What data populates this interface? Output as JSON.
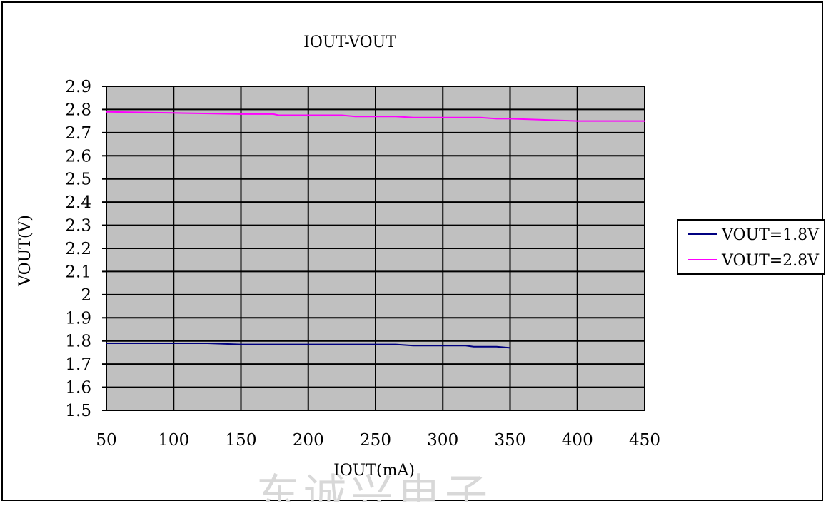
{
  "chart_data": {
    "type": "line",
    "title": "IOUT-VOUT",
    "xlabel": "IOUT(mA)",
    "ylabel": "VOUT(V)",
    "xlim": [
      50,
      450
    ],
    "ylim": [
      1.5,
      2.9
    ],
    "x_ticks": [
      "50",
      "100",
      "150",
      "200",
      "250",
      "300",
      "350",
      "400",
      "450"
    ],
    "y_ticks": [
      "2.9",
      "2.8",
      "2.7",
      "2.6",
      "2.5",
      "2.4",
      "2.3",
      "2.2",
      "2.1",
      "2",
      "1.9",
      "1.8",
      "1.7",
      "1.6",
      "1.5"
    ],
    "grid": true,
    "plot_background": "#c0c0c0",
    "legend_position": "right",
    "series": [
      {
        "name": "VOUT=1.8V",
        "color": "#000080",
        "points": [
          [
            50,
            1.79
          ],
          [
            125,
            1.79
          ],
          [
            150,
            1.785
          ],
          [
            265,
            1.785
          ],
          [
            278,
            1.78
          ],
          [
            317,
            1.78
          ],
          [
            323,
            1.775
          ],
          [
            340,
            1.775
          ],
          [
            350,
            1.77
          ]
        ]
      },
      {
        "name": "VOUT=2.8V",
        "color": "#ff00ff",
        "points": [
          [
            50,
            2.79
          ],
          [
            100,
            2.785
          ],
          [
            150,
            2.78
          ],
          [
            174,
            2.78
          ],
          [
            178,
            2.775
          ],
          [
            225,
            2.775
          ],
          [
            235,
            2.77
          ],
          [
            265,
            2.77
          ],
          [
            278,
            2.765
          ],
          [
            328,
            2.765
          ],
          [
            340,
            2.76
          ],
          [
            350,
            2.76
          ],
          [
            400,
            2.75
          ],
          [
            450,
            2.75
          ]
        ]
      }
    ],
    "watermark": "东诚兴电子"
  }
}
